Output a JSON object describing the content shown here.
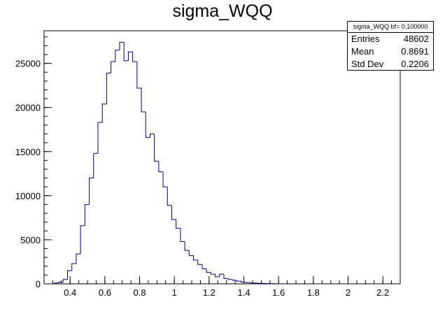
{
  "chart_data": {
    "type": "bar",
    "title": "sigma_WQQ",
    "stats": {
      "header": "sigma_WQQ bf= 0.100000",
      "rows": [
        {
          "label": "Entries",
          "value": "48602"
        },
        {
          "label": "Mean",
          "value": "0.8691"
        },
        {
          "label": "Std Dev",
          "value": "0.2206"
        }
      ]
    },
    "xlim": [
      0.25,
      2.3
    ],
    "ylim": [
      0,
      28700
    ],
    "x_ticks": [
      {
        "value": 0.4,
        "label": "0.4"
      },
      {
        "value": 0.6,
        "label": "0.6"
      },
      {
        "value": 0.8,
        "label": "0.8"
      },
      {
        "value": 1.0,
        "label": "1"
      },
      {
        "value": 1.2,
        "label": "1.2"
      },
      {
        "value": 1.4,
        "label": "1.4"
      },
      {
        "value": 1.6,
        "label": "1.6"
      },
      {
        "value": 1.8,
        "label": "1.8"
      },
      {
        "value": 2.0,
        "label": "2"
      },
      {
        "value": 2.2,
        "label": "2.2"
      }
    ],
    "y_ticks": [
      {
        "value": 0,
        "label": "0"
      },
      {
        "value": 5000,
        "label": "5000"
      },
      {
        "value": 10000,
        "label": "10000"
      },
      {
        "value": 15000,
        "label": "15000"
      },
      {
        "value": 20000,
        "label": "20000"
      },
      {
        "value": 25000,
        "label": "25000"
      }
    ],
    "line_color": "#000080",
    "bins": {
      "start": 0.31,
      "width": 0.025,
      "values": [
        100,
        200,
        500,
        1500,
        2300,
        3400,
        6600,
        9000,
        12000,
        14800,
        18300,
        20400,
        23900,
        25200,
        26500,
        27400,
        25300,
        26300,
        25200,
        22200,
        19500,
        16600,
        17000,
        13900,
        12700,
        11000,
        8900,
        7300,
        6300,
        4800,
        3800,
        3200,
        2700,
        2200,
        1700,
        1300,
        1100,
        800,
        1100,
        600,
        500,
        400,
        300,
        200,
        150,
        100,
        80,
        60,
        40,
        30,
        20
      ]
    }
  }
}
